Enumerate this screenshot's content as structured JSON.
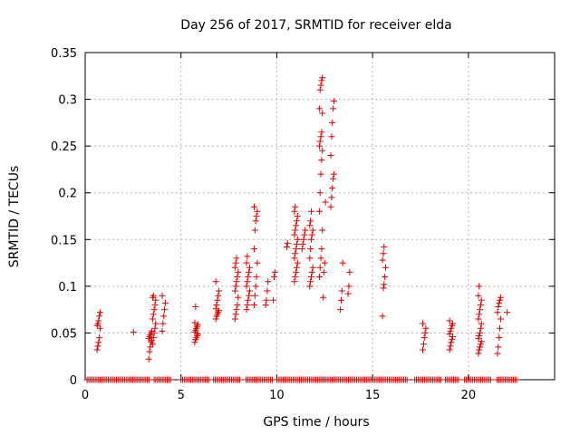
{
  "chart_data": {
    "type": "scatter",
    "title": "Day 256 of 2017, SRMTID for receiver elda",
    "xlabel": "GPS time / hours",
    "ylabel": "SRMTID / TECUs",
    "xlim": [
      0,
      24.5
    ],
    "ylim": [
      0,
      0.35
    ],
    "x_ticks": [
      0,
      5,
      10,
      15,
      20
    ],
    "x_tick_labels": [
      "0",
      "5",
      "10",
      "15",
      "20"
    ],
    "y_ticks": [
      0,
      0.05,
      0.1,
      0.15,
      0.2,
      0.25,
      0.3,
      0.35
    ],
    "y_tick_labels": [
      "0",
      "0.05",
      "0.1",
      "0.15",
      "0.2",
      "0.25",
      "0.3",
      "0.35"
    ],
    "grid": true,
    "marker": "+",
    "series": [
      {
        "name": "SRMTID",
        "color": "#dd0000",
        "clusters": [
          {
            "x": 0.7,
            "values": [
              0.032,
              0.036,
              0.04,
              0.045,
              0.055,
              0.058,
              0.06,
              0.063,
              0.068,
              0.072
            ]
          },
          {
            "x": 2.6,
            "values": [
              0.051
            ]
          },
          {
            "x": 3.4,
            "values": [
              0.022,
              0.03,
              0.035,
              0.04,
              0.042,
              0.044,
              0.046,
              0.048,
              0.05,
              0.052
            ]
          },
          {
            "x": 3.6,
            "values": [
              0.038,
              0.045,
              0.05,
              0.055,
              0.06,
              0.065,
              0.07,
              0.075,
              0.08,
              0.085,
              0.088,
              0.09
            ]
          },
          {
            "x": 4.1,
            "values": [
              0.052,
              0.06,
              0.068,
              0.075,
              0.082,
              0.09
            ]
          },
          {
            "x": 5.8,
            "values": [
              0.04,
              0.043,
              0.045,
              0.047,
              0.049,
              0.051,
              0.053,
              0.055,
              0.057,
              0.059,
              0.061,
              0.078
            ]
          },
          {
            "x": 6.9,
            "values": [
              0.065,
              0.068,
              0.07,
              0.072,
              0.074,
              0.076,
              0.08,
              0.085,
              0.09,
              0.095,
              0.105
            ]
          },
          {
            "x": 7.9,
            "values": [
              0.065,
              0.07,
              0.075,
              0.08,
              0.088,
              0.095,
              0.1,
              0.105,
              0.11,
              0.115,
              0.12,
              0.125,
              0.13
            ]
          },
          {
            "x": 8.5,
            "values": [
              0.075,
              0.08,
              0.085,
              0.09,
              0.095,
              0.1,
              0.105,
              0.11,
              0.115,
              0.12,
              0.125,
              0.132
            ]
          },
          {
            "x": 8.9,
            "values": [
              0.08,
              0.09,
              0.1,
              0.11,
              0.125,
              0.14,
              0.16,
              0.17,
              0.175,
              0.18,
              0.185
            ]
          },
          {
            "x": 9.5,
            "values": [
              0.08,
              0.085,
              0.095,
              0.105
            ]
          },
          {
            "x": 9.9,
            "values": [
              0.085,
              0.11,
              0.115
            ]
          },
          {
            "x": 10.6,
            "values": [
              0.142,
              0.146
            ]
          },
          {
            "x": 11.0,
            "values": [
              0.105,
              0.11,
              0.115,
              0.12,
              0.125,
              0.13,
              0.135,
              0.14,
              0.145,
              0.15,
              0.155,
              0.16,
              0.165,
              0.17,
              0.175,
              0.18,
              0.185
            ]
          },
          {
            "x": 11.4,
            "values": [
              0.14,
              0.145,
              0.15,
              0.155,
              0.16
            ]
          },
          {
            "x": 11.8,
            "values": [
              0.1,
              0.105,
              0.11,
              0.115,
              0.12,
              0.13,
              0.14,
              0.15,
              0.155,
              0.16,
              0.165,
              0.17,
              0.18
            ]
          },
          {
            "x": 12.3,
            "values": [
              0.11,
              0.12,
              0.13,
              0.14,
              0.16,
              0.18,
              0.2,
              0.22,
              0.235,
              0.245,
              0.25,
              0.255,
              0.26,
              0.265,
              0.285,
              0.29,
              0.31,
              0.315,
              0.32,
              0.323
            ]
          },
          {
            "x": 12.5,
            "values": [
              0.088,
              0.115,
              0.125,
              0.19
            ]
          },
          {
            "x": 12.9,
            "values": [
              0.185,
              0.195,
              0.205,
              0.215,
              0.22,
              0.24,
              0.26,
              0.275,
              0.29,
              0.298
            ]
          },
          {
            "x": 13.4,
            "values": [
              0.075,
              0.085,
              0.095,
              0.125
            ]
          },
          {
            "x": 13.8,
            "values": [
              0.092,
              0.1,
              0.115
            ]
          },
          {
            "x": 15.6,
            "values": [
              0.068,
              0.098,
              0.102,
              0.11,
              0.12,
              0.128,
              0.135,
              0.142
            ]
          },
          {
            "x": 17.7,
            "values": [
              0.032,
              0.038,
              0.045,
              0.05,
              0.055,
              0.06
            ]
          },
          {
            "x": 19.1,
            "values": [
              0.032,
              0.036,
              0.04,
              0.043,
              0.046,
              0.049,
              0.052,
              0.055,
              0.058,
              0.06,
              0.063
            ]
          },
          {
            "x": 20.6,
            "values": [
              0.028,
              0.032,
              0.035,
              0.038,
              0.041,
              0.044,
              0.047,
              0.05,
              0.055,
              0.06,
              0.065,
              0.07,
              0.075,
              0.08,
              0.085,
              0.09,
              0.1
            ]
          },
          {
            "x": 21.6,
            "values": [
              0.028,
              0.035,
              0.045,
              0.055,
              0.065,
              0.072,
              0.078,
              0.082,
              0.085,
              0.088
            ]
          },
          {
            "x": 22.1,
            "values": [
              0.072
            ]
          }
        ],
        "baseline_zero_ranges": [
          [
            0.1,
            3.4
          ],
          [
            3.6,
            4.5
          ],
          [
            5.0,
            6.5
          ],
          [
            6.7,
            8.1
          ],
          [
            8.4,
            9.8
          ],
          [
            10.0,
            16.8
          ],
          [
            17.2,
            18.6
          ],
          [
            18.8,
            19.5
          ],
          [
            19.8,
            21.2
          ],
          [
            21.5,
            22.6
          ]
        ]
      }
    ]
  }
}
